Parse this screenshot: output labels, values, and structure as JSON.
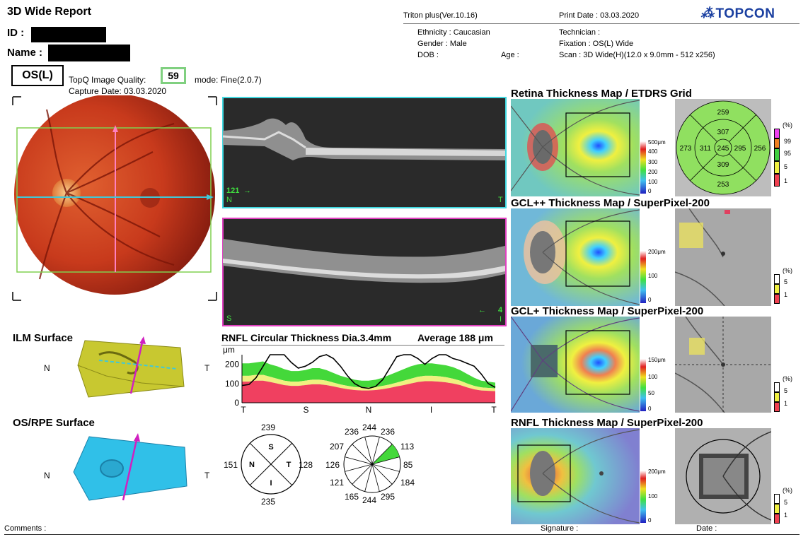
{
  "header": {
    "title": "3D Wide Report",
    "device": "Triton plus(Ver.10.16)",
    "print_date": "Print Date : 03.03.2020",
    "brand": "TOPCON",
    "id_label": "ID :",
    "name_label": "Name :"
  },
  "patient": {
    "ethnicity": "Ethnicity : Caucasian",
    "gender": "Gender : Male",
    "dob": "DOB :",
    "age": "Age :",
    "technician": "Technician :",
    "fixation": "Fixation : OS(L) Wide",
    "scan": "Scan : 3D Wide(H)(12.0 x 9.0mm - 512 x256)"
  },
  "exam": {
    "eye": "OS(L)",
    "quality_label": "TopQ Image Quality:",
    "quality_value": "59",
    "mode": "mode: Fine(2.0.7)",
    "capture_date": "Capture Date: 03.03.2020"
  },
  "oct": {
    "h_scan_label": "121",
    "h_n": "N",
    "h_t": "T",
    "v_s": "S",
    "v_num": "4",
    "v_i": "I"
  },
  "surfaces": {
    "ilm_title": "ILM Surface",
    "rpe_title": "OS/RPE Surface",
    "n": "N",
    "t": "T"
  },
  "rnfl": {
    "title": "RNFL Circular Thickness Dia.3.4mm",
    "average": "Average  188 μm",
    "unit": "μm",
    "quadrants": {
      "s": "239",
      "n": "151",
      "t": "128",
      "i": "235",
      "S": "S",
      "N": "N",
      "T": "T",
      "I": "I"
    },
    "clock": [
      "244",
      "236",
      "113",
      "85",
      "184",
      "295",
      "244",
      "165",
      "121",
      "126",
      "207",
      "236"
    ]
  },
  "chart_data": {
    "type": "line",
    "title": "RNFL Circular Thickness Dia.3.4mm",
    "ylabel": "μm",
    "xlabel": "",
    "x_ticks": [
      "T",
      "S",
      "N",
      "I",
      "T"
    ],
    "y_ticks": [
      "200",
      "100",
      "0"
    ],
    "ylim": [
      0,
      250
    ],
    "series": [
      {
        "name": "",
        "x": [
          0,
          10,
          20,
          30,
          40,
          50,
          60,
          70,
          80,
          90,
          100,
          110,
          120,
          130,
          140,
          150,
          160,
          170,
          180,
          190,
          200,
          210,
          220,
          230,
          240,
          250,
          260,
          270,
          280,
          290,
          300,
          310,
          320,
          330,
          340,
          350,
          360
        ],
        "values": [
          90,
          95,
          130,
          190,
          250,
          260,
          250,
          210,
          180,
          190,
          210,
          240,
          250,
          230,
          190,
          140,
          100,
          80,
          75,
          85,
          120,
          180,
          240,
          270,
          260,
          230,
          200,
          230,
          260,
          250,
          230,
          220,
          205,
          190,
          150,
          100,
          80
        ]
      }
    ],
    "bands": {
      "p99": [
        205,
        205,
        210,
        215,
        200,
        190,
        175,
        165,
        165,
        170,
        180,
        180,
        170,
        155,
        140,
        130,
        120,
        115,
        115,
        120,
        130,
        145,
        160,
        175,
        190,
        200,
        205,
        205,
        200,
        195,
        185,
        170,
        150,
        130,
        115,
        110,
        105
      ],
      "p95": [
        140,
        140,
        145,
        145,
        135,
        125,
        115,
        110,
        110,
        115,
        120,
        120,
        115,
        105,
        95,
        88,
        82,
        80,
        80,
        82,
        88,
        95,
        105,
        115,
        125,
        135,
        140,
        140,
        138,
        133,
        125,
        115,
        100,
        88,
        80,
        77,
        75
      ],
      "p5": [
        110,
        110,
        115,
        115,
        108,
        100,
        92,
        88,
        88,
        92,
        96,
        96,
        92,
        85,
        77,
        71,
        66,
        64,
        64,
        66,
        71,
        77,
        85,
        92,
        100,
        108,
        112,
        112,
        110,
        106,
        100,
        92,
        80,
        70,
        64,
        62,
        60
      ],
      "p1": [
        90,
        90,
        95,
        95,
        88,
        80,
        74,
        70,
        70,
        74,
        78,
        78,
        74,
        68,
        62,
        57,
        53,
        51,
        51,
        53,
        57,
        62,
        68,
        74,
        80,
        88,
        92,
        92,
        90,
        86,
        80,
        74,
        64,
        56,
        51,
        50,
        48
      ]
    },
    "colors": {
      "p99": "#44d83a",
      "p95": "#f0f080",
      "p5": "#f04060",
      "line": "#000000"
    }
  },
  "maps": {
    "retina": {
      "title": "Retina Thickness Map / ETDRS Grid",
      "scale_unit": "500μm",
      "scale": [
        "400",
        "300",
        "200",
        "100",
        "0"
      ],
      "etdrs": {
        "outer_s": "259",
        "outer_n": "273",
        "outer_t": "256",
        "outer_i": "253",
        "inner_s": "307",
        "inner_n": "311",
        "inner_t": "295",
        "inner_i": "309",
        "center": "245"
      },
      "pct_label": "(%)",
      "pct": [
        "99",
        "95",
        "5",
        "1"
      ]
    },
    "gclpp": {
      "title": "GCL++ Thickness Map / SuperPixel-200",
      "scale_unit": "200μm",
      "scale": [
        "100",
        "0"
      ],
      "pct_label": "(%)",
      "pct": [
        "5",
        "1"
      ]
    },
    "gclp": {
      "title": "GCL+ Thickness Map / SuperPixel-200",
      "scale_unit": "150μm",
      "scale": [
        "100",
        "50",
        "0"
      ],
      "pct_label": "(%)",
      "pct": [
        "5",
        "1"
      ]
    },
    "rnflmap": {
      "title": "RNFL Thickness Map / SuperPixel-200",
      "scale_unit": "200μm",
      "scale": [
        "100",
        "0"
      ],
      "pct_label": "(%)",
      "pct": [
        "5",
        "1"
      ]
    }
  },
  "footer": {
    "comments": "Comments :",
    "signature": "Signature :",
    "date": "Date :"
  }
}
